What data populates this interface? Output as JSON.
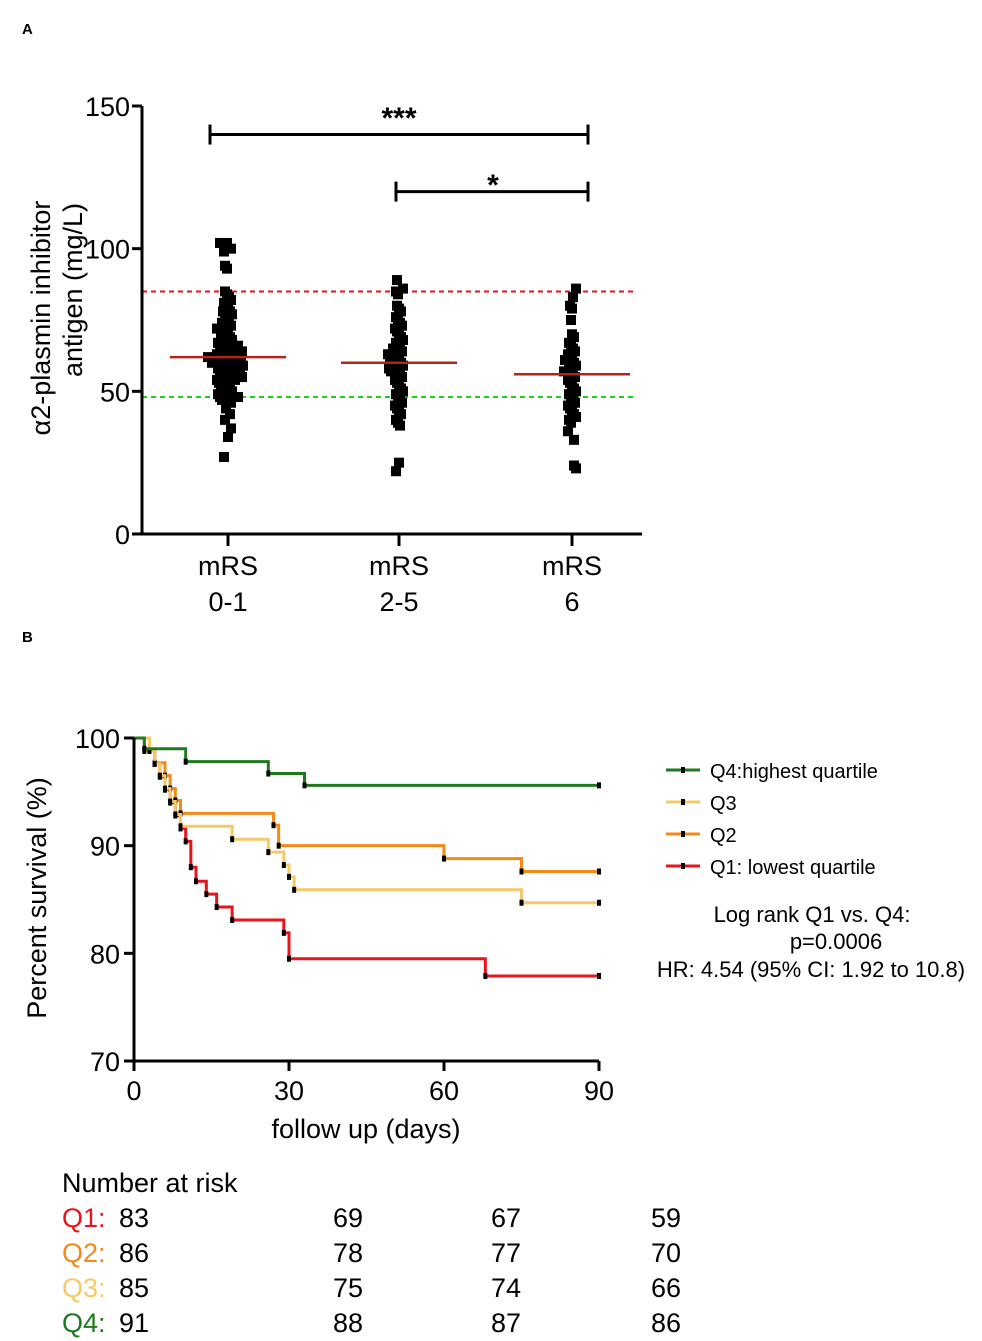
{
  "panel_a": {
    "label": "A",
    "ylabel_line1": "α2-plasmin inhibitor",
    "ylabel_line2": "antigen (mg/L)",
    "sig_main": "***",
    "sig_minor": "*"
  },
  "panel_b": {
    "label": "B",
    "ylabel": "Percent survival (%)",
    "xlabel": "follow up (days)",
    "stats_line1": "Log rank Q1 vs. Q4:",
    "stats_line2": "p=0.0006",
    "stats_line3": "HR: 4.54 (95% CI: 1.92 to 10.8)"
  },
  "risk_table": {
    "title": "Number at risk",
    "rows": [
      {
        "label": "Q1:",
        "color": "#e8141c",
        "values": [
          "83",
          "69",
          "67",
          "59"
        ]
      },
      {
        "label": "Q2:",
        "color": "#f28a1a",
        "values": [
          "86",
          "78",
          "77",
          "70"
        ]
      },
      {
        "label": "Q3:",
        "color": "#f7c86a",
        "values": [
          "85",
          "75",
          "74",
          "66"
        ]
      },
      {
        "label": "Q4:",
        "color": "#1f7a1f",
        "values": [
          "91",
          "88",
          "87",
          "86"
        ]
      }
    ]
  },
  "chart_data": [
    {
      "type": "scatter",
      "title": "",
      "xlabel": "",
      "ylabel": "α2-plasmin inhibitor antigen (mg/L)",
      "ylim": [
        0,
        150
      ],
      "yticks": [
        0,
        50,
        100,
        150
      ],
      "categories": [
        {
          "line1": "mRS",
          "line2": "0-1"
        },
        {
          "line1": "mRS",
          "line2": "2-5"
        },
        {
          "line1": "mRS",
          "line2": "6"
        }
      ],
      "medians": [
        62,
        60,
        56
      ],
      "reference_lines": [
        {
          "value": 85,
          "color": "#e8141c"
        },
        {
          "value": 48,
          "color": "#19d319"
        }
      ],
      "significance": [
        {
          "from": 0,
          "to": 2,
          "y": 140,
          "label": "***"
        },
        {
          "from": 1,
          "to": 2,
          "y": 120,
          "label": "*"
        }
      ],
      "points": [
        [
          102,
          102,
          100,
          99,
          94,
          93,
          27,
          34,
          37,
          40,
          42,
          44,
          46,
          47,
          48,
          84,
          85,
          83,
          82,
          81,
          80,
          79,
          78,
          78,
          77,
          76,
          75,
          74,
          74,
          73,
          72,
          72,
          71,
          70,
          70,
          69,
          69,
          68,
          68,
          67,
          67,
          66,
          66,
          66,
          65,
          65,
          64,
          64,
          64,
          63,
          63,
          63,
          62,
          62,
          62,
          62,
          61,
          61,
          61,
          60,
          60,
          60,
          60,
          59,
          59,
          59,
          58,
          58,
          58,
          57,
          57,
          57,
          56,
          56,
          56,
          55,
          55,
          55,
          54,
          54,
          54,
          53,
          53,
          52,
          52,
          51,
          51,
          50,
          50,
          49,
          49,
          48,
          48,
          47
        ],
        [
          89,
          86,
          85,
          84,
          80,
          79,
          78,
          76,
          75,
          74,
          73,
          72,
          71,
          70,
          69,
          68,
          67,
          66,
          65,
          65,
          64,
          63,
          63,
          62,
          62,
          61,
          61,
          60,
          60,
          59,
          59,
          58,
          58,
          57,
          57,
          56,
          55,
          55,
          54,
          53,
          52,
          51,
          50,
          49,
          48,
          47,
          46,
          45,
          44,
          43,
          42,
          40,
          39,
          38,
          25,
          22
        ],
        [
          86,
          83,
          80,
          79,
          75,
          70,
          69,
          67,
          66,
          65,
          64,
          63,
          62,
          61,
          61,
          60,
          59,
          59,
          58,
          57,
          57,
          56,
          55,
          55,
          54,
          53,
          52,
          51,
          50,
          49,
          48,
          47,
          46,
          45,
          44,
          43,
          42,
          41,
          40,
          39,
          36,
          33,
          24,
          23
        ]
      ]
    },
    {
      "type": "line",
      "title": "",
      "xlabel": "follow up (days)",
      "ylabel": "Percent survival (%)",
      "xlim": [
        0,
        90
      ],
      "ylim": [
        70,
        100
      ],
      "xticks": [
        0,
        30,
        60,
        90
      ],
      "yticks": [
        70,
        80,
        90,
        100
      ],
      "legend_position": "right",
      "series": [
        {
          "name": "Q4:highest quartile",
          "color": "#1f7a1f",
          "steps": [
            [
              0,
              100
            ],
            [
              2,
              99.0
            ],
            [
              10,
              97.8
            ],
            [
              26,
              96.7
            ],
            [
              33,
              95.6
            ],
            [
              90,
              95.6
            ]
          ]
        },
        {
          "name": "Q3",
          "color": "#f7c86a",
          "steps": [
            [
              0,
              100
            ],
            [
              3,
              98.8
            ],
            [
              4,
              97.6
            ],
            [
              5,
              96.5
            ],
            [
              6,
              95.3
            ],
            [
              7,
              94.1
            ],
            [
              8,
              92.9
            ],
            [
              9,
              91.8
            ],
            [
              19,
              90.6
            ],
            [
              26,
              89.4
            ],
            [
              29,
              88.2
            ],
            [
              30,
              87.1
            ],
            [
              31,
              85.9
            ],
            [
              75,
              84.7
            ],
            [
              90,
              84.7
            ]
          ]
        },
        {
          "name": "Q2",
          "color": "#f28a1a",
          "steps": [
            [
              0,
              100
            ],
            [
              2,
              98.8
            ],
            [
              4,
              97.7
            ],
            [
              6,
              96.5
            ],
            [
              7,
              95.3
            ],
            [
              8,
              94.2
            ],
            [
              9,
              93.0
            ],
            [
              27,
              91.9
            ],
            [
              28,
              90.0
            ],
            [
              60,
              88.8
            ],
            [
              75,
              87.6
            ],
            [
              90,
              87.6
            ]
          ]
        },
        {
          "name": "Q1: lowest quartile",
          "color": "#e8141c",
          "steps": [
            [
              0,
              100
            ],
            [
              3,
              98.8
            ],
            [
              4,
              97.6
            ],
            [
              5,
              96.4
            ],
            [
              6,
              95.2
            ],
            [
              7,
              94.0
            ],
            [
              8,
              92.8
            ],
            [
              9,
              91.6
            ],
            [
              10,
              90.4
            ],
            [
              11,
              88.0
            ],
            [
              12,
              86.7
            ],
            [
              14,
              85.5
            ],
            [
              16,
              84.3
            ],
            [
              19,
              83.1
            ],
            [
              29,
              81.9
            ],
            [
              30,
              79.5
            ],
            [
              68,
              77.9
            ],
            [
              90,
              77.9
            ]
          ]
        }
      ]
    }
  ]
}
